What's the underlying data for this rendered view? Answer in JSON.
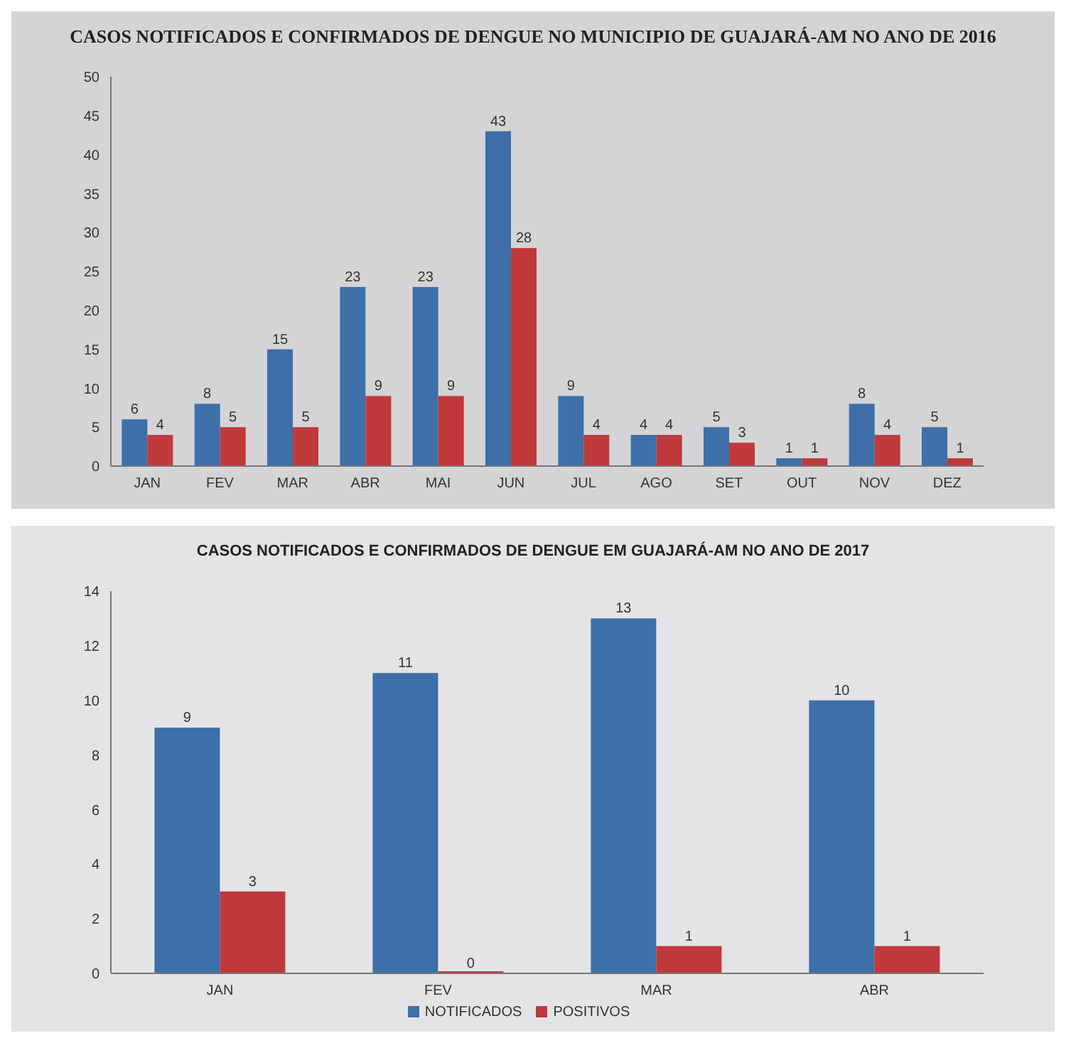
{
  "chart_data": [
    {
      "type": "bar",
      "title": "CASOS NOTIFICADOS E CONFIRMADOS DE DENGUE NO MUNICIPIO DE GUAJARÁ-AM NO ANO DE 2016",
      "categories": [
        "JAN",
        "FEV",
        "MAR",
        "ABR",
        "MAI",
        "JUN",
        "JUL",
        "AGO",
        "SET",
        "OUT",
        "NOV",
        "DEZ"
      ],
      "series": [
        {
          "color": "#3e6fa8",
          "values": [
            6,
            8,
            15,
            23,
            23,
            43,
            9,
            4,
            5,
            1,
            8,
            5
          ]
        },
        {
          "color": "#c0393b",
          "values": [
            4,
            5,
            5,
            9,
            9,
            28,
            4,
            4,
            3,
            1,
            4,
            1
          ]
        }
      ],
      "ylim": [
        0,
        50
      ],
      "yticks": [
        0,
        5,
        10,
        15,
        20,
        25,
        30,
        35,
        40,
        45,
        50
      ],
      "data_labels": true
    },
    {
      "type": "bar",
      "title": "CASOS NOTIFICADOS E CONFIRMADOS DE DENGUE EM GUAJARÁ-AM NO ANO DE 2017",
      "categories": [
        "JAN",
        "FEV",
        "MAR",
        "ABR"
      ],
      "series": [
        {
          "name": "NOTIFICADOS",
          "color": "#3e6fa8",
          "values": [
            9,
            11,
            13,
            10
          ]
        },
        {
          "name": "POSITIVOS",
          "color": "#c0393b",
          "values": [
            3,
            0,
            1,
            1
          ]
        }
      ],
      "ylim": [
        0,
        14
      ],
      "yticks": [
        0,
        2,
        4,
        6,
        8,
        10,
        12,
        14
      ],
      "legend": "bottom",
      "data_labels": true
    }
  ]
}
